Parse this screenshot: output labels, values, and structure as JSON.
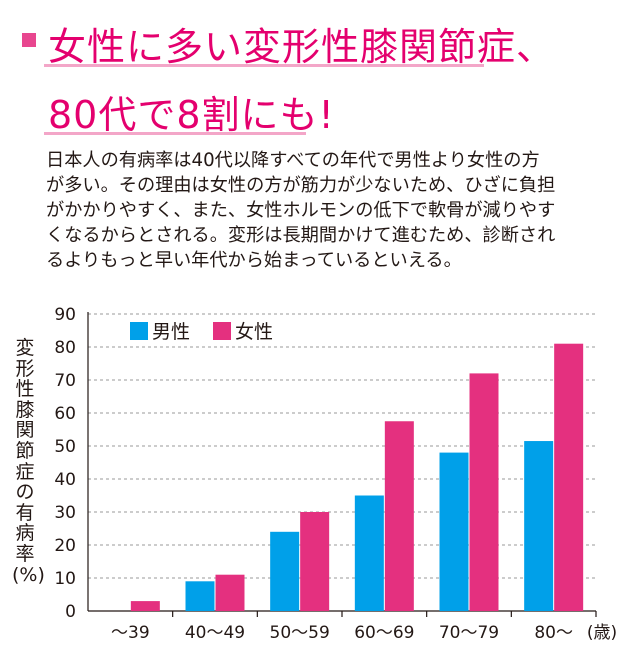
{
  "heading": {
    "line1": "女性に多い変形性膝関節症、",
    "line2": "80代で8割にも!"
  },
  "body_text": "日本人の有病率は40代以降すべての年代で男性より女性の方\nが多い。その理由は女性の方が筋力が少ないため、ひざに負担\nがかかりやすく、また、女性ホルモンの低下で軟骨が減りやす\nくなるからとされる。変形は長期間かけて進むため、診断され\nるよりもっと早い年代から始まっているといえる。",
  "colors": {
    "male": "#00a0e9",
    "female": "#e4307f",
    "title": "#e4006e",
    "underline": "#f3a6c8"
  },
  "chart_data": {
    "type": "bar",
    "ylabel": "変形性膝関節症の有病率(%)",
    "x_unit": "(歳)",
    "categories": [
      "〜39",
      "40〜49",
      "50〜59",
      "60〜69",
      "70〜79",
      "80〜"
    ],
    "ylim": [
      0,
      90
    ],
    "yticks": [
      0,
      10,
      20,
      30,
      40,
      50,
      60,
      70,
      80,
      90
    ],
    "grid": true,
    "legend_position": "top-left",
    "series": [
      {
        "name": "男性",
        "color": "#00a0e9",
        "values": [
          0,
          9,
          24,
          35,
          48,
          51.5
        ]
      },
      {
        "name": "女性",
        "color": "#e4307f",
        "values": [
          3,
          11,
          30,
          57.5,
          72,
          81
        ]
      }
    ]
  }
}
